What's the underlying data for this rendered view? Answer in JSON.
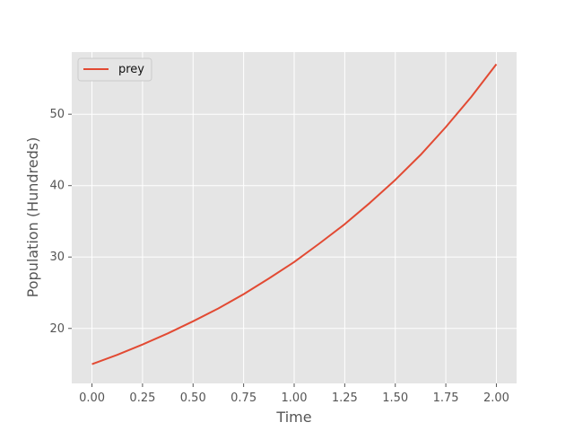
{
  "chart_data": {
    "type": "line",
    "title": "",
    "xlabel": "Time",
    "ylabel": "Population (Hundreds)",
    "xlim": [
      -0.1,
      2.1
    ],
    "ylim": [
      12.3,
      58.7
    ],
    "x_ticks": [
      0.0,
      0.25,
      0.5,
      0.75,
      1.0,
      1.25,
      1.5,
      1.75,
      2.0
    ],
    "x_tick_labels": [
      "0.00",
      "0.25",
      "0.50",
      "0.75",
      "1.00",
      "1.25",
      "1.50",
      "1.75",
      "2.00"
    ],
    "y_ticks": [
      20,
      30,
      40,
      50
    ],
    "y_tick_labels": [
      "20",
      "30",
      "40",
      "50"
    ],
    "grid": true,
    "legend_position": "top-left",
    "series": [
      {
        "name": "prey",
        "color": "#E24A33",
        "x": [
          0.0,
          0.125,
          0.25,
          0.375,
          0.5,
          0.625,
          0.75,
          0.875,
          1.0,
          1.125,
          1.25,
          1.375,
          1.5,
          1.625,
          1.75,
          1.875,
          2.0
        ],
        "y": [
          15.0,
          16.3,
          17.75,
          19.3,
          21.0,
          22.8,
          24.8,
          27.0,
          29.3,
          31.9,
          34.6,
          37.6,
          40.8,
          44.3,
          48.2,
          52.4,
          57.0
        ]
      }
    ]
  }
}
